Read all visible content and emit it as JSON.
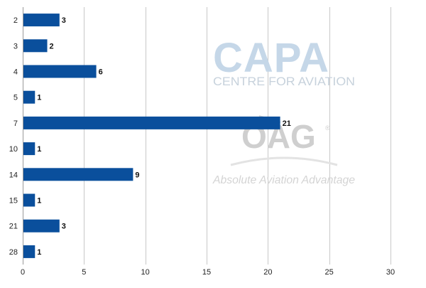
{
  "chart_data": {
    "type": "bar",
    "orientation": "horizontal",
    "categories": [
      "2",
      "3",
      "4",
      "5",
      "7",
      "10",
      "14",
      "15",
      "21",
      "28"
    ],
    "values": [
      3,
      2,
      6,
      1,
      21,
      1,
      9,
      1,
      3,
      1
    ],
    "title": "",
    "xlabel": "",
    "ylabel": "",
    "xlim": [
      0,
      30
    ],
    "xticks": [
      0,
      5,
      10,
      15,
      20,
      25,
      30
    ],
    "grid": "vertical",
    "legend": "none",
    "bar_color": "#0a4f9c",
    "data_labels": true
  },
  "watermark": {
    "capa_logo": "CAPA",
    "capa_sub": "CENTRE FOR AVIATION",
    "oag_logo": "OAG",
    "oag_mark": "®",
    "tagline": "Absolute Aviation Advantage",
    "capa_color": "#c5d7e8",
    "oag_color": "#cfcfcf"
  }
}
